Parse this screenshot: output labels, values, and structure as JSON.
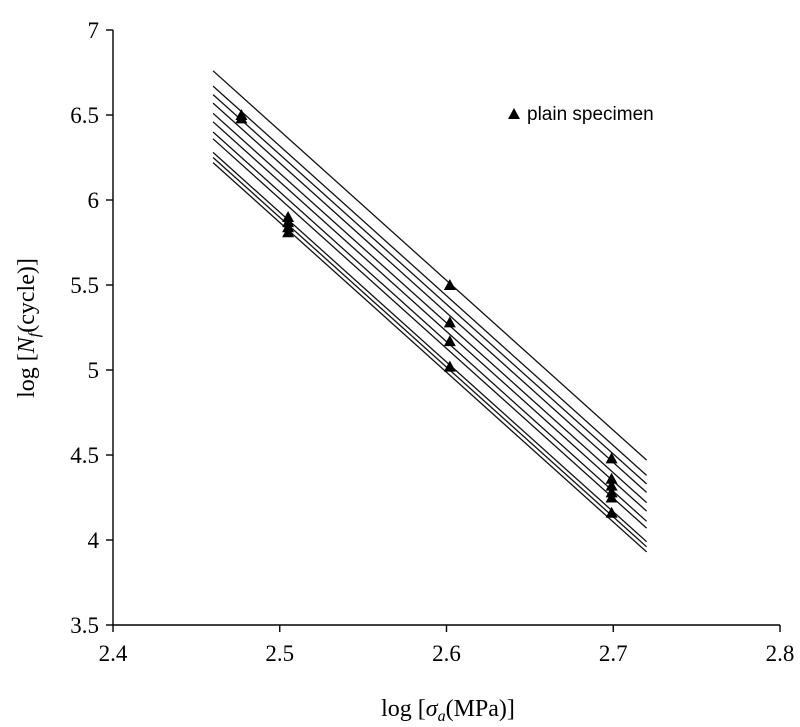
{
  "chart_data": {
    "type": "scatter",
    "title": "",
    "xlabel_parts": {
      "pre": "log [",
      "sym": "σ",
      "sub": "a",
      "post": "(MPa)]"
    },
    "ylabel_parts": {
      "pre": "log [",
      "sym": "N",
      "sub": "f",
      "post": "(cycle)]"
    },
    "xlim": [
      2.4,
      2.8
    ],
    "ylim": [
      3.5,
      7
    ],
    "xticks": [
      "2.4",
      "2.5",
      "2.6",
      "2.7",
      "2.8"
    ],
    "yticks": [
      "3.5",
      "4",
      "4.5",
      "5",
      "5.5",
      "6",
      "6.5",
      "7"
    ],
    "grid": false,
    "legend": {
      "position": "top-right",
      "marker": "triangle"
    },
    "series": [
      {
        "name": "plain specimen",
        "points": [
          [
            2.477,
            6.5
          ],
          [
            2.477,
            6.48
          ],
          [
            2.505,
            5.9
          ],
          [
            2.505,
            5.87
          ],
          [
            2.505,
            5.84
          ],
          [
            2.505,
            5.81
          ],
          [
            2.602,
            5.5
          ],
          [
            2.602,
            5.28
          ],
          [
            2.602,
            5.17
          ],
          [
            2.602,
            5.02
          ],
          [
            2.699,
            4.48
          ],
          [
            2.699,
            4.36
          ],
          [
            2.699,
            4.32
          ],
          [
            2.699,
            4.28
          ],
          [
            2.699,
            4.25
          ],
          [
            2.699,
            4.16
          ]
        ]
      }
    ],
    "fit_lines": [
      {
        "x": [
          2.46,
          2.72
        ],
        "y": [
          6.76,
          4.47
        ]
      },
      {
        "x": [
          2.46,
          2.72
        ],
        "y": [
          6.67,
          4.38
        ]
      },
      {
        "x": [
          2.46,
          2.72
        ],
        "y": [
          6.62,
          4.33
        ]
      },
      {
        "x": [
          2.46,
          2.72
        ],
        "y": [
          6.57,
          4.28
        ]
      },
      {
        "x": [
          2.46,
          2.72
        ],
        "y": [
          6.51,
          4.22
        ]
      },
      {
        "x": [
          2.46,
          2.72
        ],
        "y": [
          6.46,
          4.17
        ]
      },
      {
        "x": [
          2.46,
          2.72
        ],
        "y": [
          6.4,
          4.11
        ]
      },
      {
        "x": [
          2.46,
          2.72
        ],
        "y": [
          6.36,
          4.07
        ]
      },
      {
        "x": [
          2.46,
          2.72
        ],
        "y": [
          6.28,
          3.99
        ]
      },
      {
        "x": [
          2.46,
          2.72
        ],
        "y": [
          6.25,
          3.96
        ]
      },
      {
        "x": [
          2.46,
          2.72
        ],
        "y": [
          6.22,
          3.93
        ]
      }
    ]
  }
}
